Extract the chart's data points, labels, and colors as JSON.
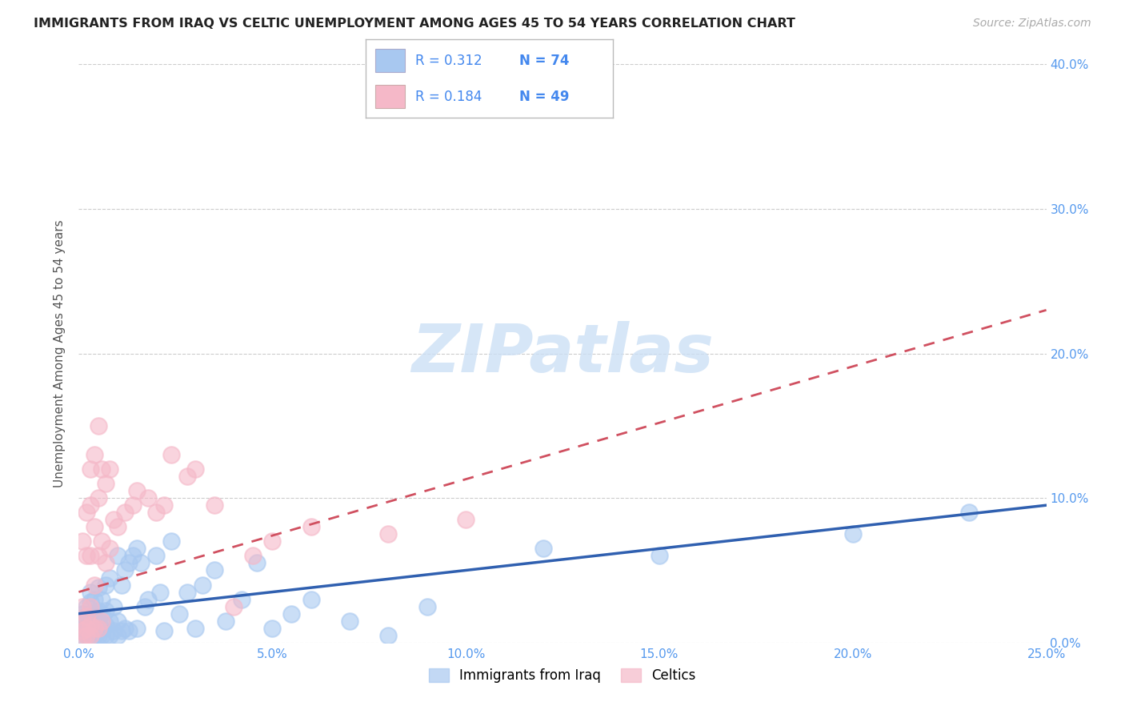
{
  "title": "IMMIGRANTS FROM IRAQ VS CELTIC UNEMPLOYMENT AMONG AGES 45 TO 54 YEARS CORRELATION CHART",
  "source": "Source: ZipAtlas.com",
  "ylabel": "Unemployment Among Ages 45 to 54 years",
  "xlim": [
    0.0,
    0.25
  ],
  "ylim": [
    0.0,
    0.4
  ],
  "xlabel_ticks": [
    "0.0%",
    "5.0%",
    "10.0%",
    "15.0%",
    "20.0%",
    "25.0%"
  ],
  "xlabel_vals": [
    0.0,
    0.05,
    0.1,
    0.15,
    0.2,
    0.25
  ],
  "ylabel_ticks": [
    "0.0%",
    "10.0%",
    "20.0%",
    "30.0%",
    "40.0%"
  ],
  "ylabel_vals": [
    0.0,
    0.1,
    0.2,
    0.3,
    0.4
  ],
  "legend_iraq": "Immigrants from Iraq",
  "legend_celtic": "Celtics",
  "r_iraq": "0.312",
  "n_iraq": "74",
  "r_celtic": "0.184",
  "n_celtic": "49",
  "color_iraq": "#a8c8f0",
  "color_celtic": "#f5b8c8",
  "color_iraq_line": "#3060b0",
  "color_celtic_line": "#d05060",
  "color_title": "#222222",
  "color_source": "#aaaaaa",
  "color_rn": "#4488ee",
  "watermark_color": "#cce0f5",
  "background": "#ffffff",
  "grid_color": "#cccccc",
  "iraq_x": [
    0.001,
    0.001,
    0.001,
    0.001,
    0.002,
    0.002,
    0.002,
    0.002,
    0.002,
    0.003,
    0.003,
    0.003,
    0.003,
    0.003,
    0.003,
    0.004,
    0.004,
    0.004,
    0.004,
    0.005,
    0.005,
    0.005,
    0.005,
    0.005,
    0.006,
    0.006,
    0.006,
    0.006,
    0.007,
    0.007,
    0.007,
    0.007,
    0.008,
    0.008,
    0.008,
    0.009,
    0.009,
    0.01,
    0.01,
    0.01,
    0.011,
    0.011,
    0.012,
    0.012,
    0.013,
    0.013,
    0.014,
    0.015,
    0.015,
    0.016,
    0.017,
    0.018,
    0.02,
    0.021,
    0.022,
    0.024,
    0.026,
    0.028,
    0.03,
    0.032,
    0.035,
    0.038,
    0.042,
    0.046,
    0.05,
    0.055,
    0.06,
    0.07,
    0.08,
    0.09,
    0.12,
    0.15,
    0.2,
    0.23
  ],
  "iraq_y": [
    0.005,
    0.01,
    0.015,
    0.02,
    0.005,
    0.008,
    0.012,
    0.018,
    0.025,
    0.003,
    0.007,
    0.012,
    0.02,
    0.028,
    0.035,
    0.005,
    0.01,
    0.018,
    0.03,
    0.005,
    0.008,
    0.015,
    0.022,
    0.038,
    0.005,
    0.01,
    0.02,
    0.03,
    0.005,
    0.012,
    0.022,
    0.04,
    0.005,
    0.015,
    0.045,
    0.008,
    0.025,
    0.005,
    0.015,
    0.06,
    0.008,
    0.04,
    0.01,
    0.05,
    0.008,
    0.055,
    0.06,
    0.01,
    0.065,
    0.055,
    0.025,
    0.03,
    0.06,
    0.035,
    0.008,
    0.07,
    0.02,
    0.035,
    0.01,
    0.04,
    0.05,
    0.015,
    0.03,
    0.055,
    0.01,
    0.02,
    0.03,
    0.015,
    0.005,
    0.025,
    0.065,
    0.06,
    0.075,
    0.09
  ],
  "celtic_x": [
    0.001,
    0.001,
    0.001,
    0.001,
    0.001,
    0.002,
    0.002,
    0.002,
    0.002,
    0.002,
    0.003,
    0.003,
    0.003,
    0.003,
    0.003,
    0.003,
    0.004,
    0.004,
    0.004,
    0.004,
    0.005,
    0.005,
    0.005,
    0.005,
    0.006,
    0.006,
    0.006,
    0.007,
    0.007,
    0.008,
    0.008,
    0.009,
    0.01,
    0.012,
    0.014,
    0.015,
    0.018,
    0.02,
    0.022,
    0.024,
    0.028,
    0.03,
    0.035,
    0.04,
    0.045,
    0.05,
    0.06,
    0.08,
    0.1
  ],
  "celtic_y": [
    0.003,
    0.008,
    0.015,
    0.025,
    0.07,
    0.005,
    0.01,
    0.018,
    0.06,
    0.09,
    0.005,
    0.012,
    0.025,
    0.06,
    0.095,
    0.12,
    0.01,
    0.04,
    0.08,
    0.13,
    0.01,
    0.06,
    0.1,
    0.15,
    0.015,
    0.07,
    0.12,
    0.055,
    0.11,
    0.065,
    0.12,
    0.085,
    0.08,
    0.09,
    0.095,
    0.105,
    0.1,
    0.09,
    0.095,
    0.13,
    0.115,
    0.12,
    0.095,
    0.025,
    0.06,
    0.07,
    0.08,
    0.075,
    0.085
  ],
  "celtic_line_x0": 0.0,
  "celtic_line_x1": 0.25,
  "celtic_line_y0": 0.035,
  "celtic_line_y1": 0.23,
  "iraq_line_x0": 0.0,
  "iraq_line_x1": 0.25,
  "iraq_line_y0": 0.02,
  "iraq_line_y1": 0.095
}
